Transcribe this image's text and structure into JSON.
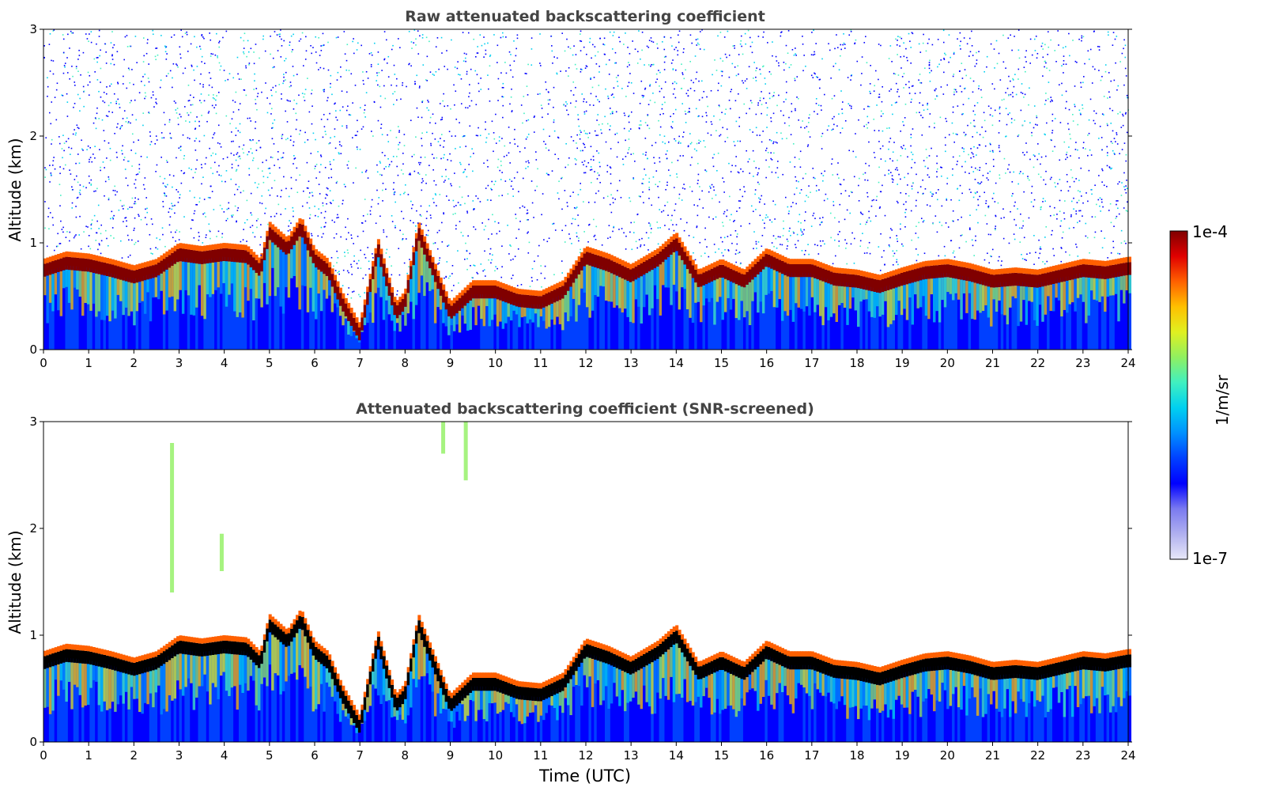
{
  "chart_data": [
    {
      "type": "heatmap",
      "title": "Raw attenuated backscattering coefficient",
      "xlabel": "",
      "ylabel": "Altitude (km)",
      "xlim": [
        0,
        24
      ],
      "ylim": [
        0,
        3
      ],
      "xticks": [
        "0",
        "1",
        "2",
        "3",
        "4",
        "5",
        "6",
        "7",
        "8",
        "9",
        "10",
        "11",
        "12",
        "13",
        "14",
        "15",
        "16",
        "17",
        "18",
        "19",
        "20",
        "21",
        "22",
        "23",
        "24"
      ],
      "yticks": [
        "0",
        "1",
        "2",
        "3"
      ],
      "boundary_layer_top_km": [
        [
          0,
          0.8
        ],
        [
          0.5,
          0.87
        ],
        [
          1,
          0.85
        ],
        [
          1.5,
          0.8
        ],
        [
          2,
          0.74
        ],
        [
          2.5,
          0.8
        ],
        [
          3,
          0.95
        ],
        [
          3.5,
          0.92
        ],
        [
          4,
          0.95
        ],
        [
          4.5,
          0.93
        ],
        [
          4.8,
          0.8
        ],
        [
          5,
          1.15
        ],
        [
          5.4,
          1.0
        ],
        [
          5.7,
          1.2
        ],
        [
          6,
          0.9
        ],
        [
          6.3,
          0.8
        ],
        [
          6.6,
          0.5
        ],
        [
          7,
          0.2
        ],
        [
          7.4,
          1.0
        ],
        [
          7.8,
          0.4
        ],
        [
          8,
          0.5
        ],
        [
          8.3,
          1.15
        ],
        [
          9,
          0.4
        ],
        [
          9.5,
          0.6
        ],
        [
          10,
          0.6
        ],
        [
          10.5,
          0.52
        ],
        [
          11,
          0.5
        ],
        [
          11.5,
          0.6
        ],
        [
          12,
          0.92
        ],
        [
          12.5,
          0.85
        ],
        [
          13,
          0.75
        ],
        [
          13.6,
          0.9
        ],
        [
          14,
          1.05
        ],
        [
          14.5,
          0.7
        ],
        [
          15,
          0.8
        ],
        [
          15.5,
          0.7
        ],
        [
          16,
          0.9
        ],
        [
          16.5,
          0.8
        ],
        [
          17,
          0.8
        ],
        [
          17.5,
          0.72
        ],
        [
          18,
          0.7
        ],
        [
          18.5,
          0.65
        ],
        [
          19,
          0.72
        ],
        [
          19.5,
          0.78
        ],
        [
          20,
          0.8
        ],
        [
          20.5,
          0.76
        ],
        [
          21,
          0.7
        ],
        [
          21.5,
          0.72
        ],
        [
          22,
          0.7
        ],
        [
          22.5,
          0.75
        ],
        [
          23,
          0.8
        ],
        [
          23.5,
          0.78
        ],
        [
          24,
          0.82
        ]
      ]
    },
    {
      "type": "heatmap",
      "title": "Attenuated backscattering coefficient (SNR-screened)",
      "xlabel": "Time (UTC)",
      "ylabel": "Altitude (km)",
      "xlim": [
        0,
        24
      ],
      "ylim": [
        0,
        3
      ],
      "xticks": [
        "0",
        "1",
        "2",
        "3",
        "4",
        "5",
        "6",
        "7",
        "8",
        "9",
        "10",
        "11",
        "12",
        "13",
        "14",
        "15",
        "16",
        "17",
        "18",
        "19",
        "20",
        "21",
        "22",
        "23",
        "24"
      ],
      "yticks": [
        "0",
        "1",
        "2",
        "3"
      ]
    }
  ],
  "colorbar": {
    "max_label": "1e-4",
    "min_label": "1e-7",
    "unit_label": "1/m/sr",
    "colors": [
      "#e8e8f8",
      "#b0b0f0",
      "#7a7af0",
      "#0000ff",
      "#0040ff",
      "#0090ff",
      "#00d0f0",
      "#40f0c0",
      "#90f060",
      "#e0f020",
      "#ffc000",
      "#ff6000",
      "#e00000",
      "#800000"
    ]
  }
}
